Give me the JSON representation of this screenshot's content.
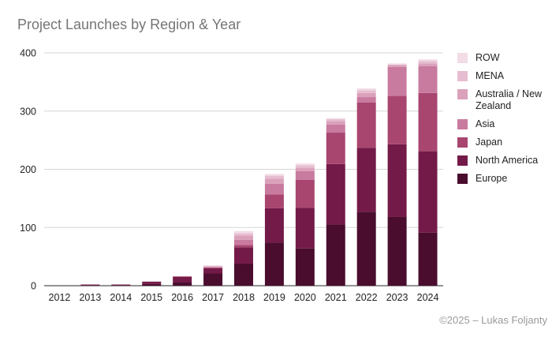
{
  "chart_data": {
    "type": "bar",
    "stacked": true,
    "title": "Project Launches by Region & Year",
    "xlabel": "",
    "ylabel": "",
    "ylim": [
      0,
      400
    ],
    "yticks": [
      0,
      100,
      200,
      300,
      400
    ],
    "grid": true,
    "legend_position": "right",
    "categories": [
      "2012",
      "2013",
      "2014",
      "2015",
      "2016",
      "2017",
      "2018",
      "2019",
      "2020",
      "2021",
      "2022",
      "2023",
      "2024"
    ],
    "series": [
      {
        "name": "Europe",
        "color": "#4a0d2e",
        "values": [
          0,
          1,
          1,
          3,
          6,
          21,
          38,
          74,
          64,
          105,
          127,
          118,
          91
        ]
      },
      {
        "name": "North America",
        "color": "#741a48",
        "values": [
          0,
          1,
          1,
          4,
          9,
          9,
          28,
          59,
          70,
          104,
          110,
          125,
          140
        ]
      },
      {
        "name": "Japan",
        "color": "#a8466f",
        "values": [
          0,
          0,
          0,
          0,
          1,
          1,
          4,
          24,
          48,
          54,
          78,
          83,
          100
        ]
      },
      {
        "name": "Asia",
        "color": "#c97a9f",
        "values": [
          0,
          0,
          0,
          0,
          0,
          1,
          9,
          18,
          15,
          14,
          9,
          50,
          46
        ]
      },
      {
        "name": "Australia / New Zealand",
        "color": "#dba1bb",
        "values": [
          0,
          0,
          0,
          0,
          0,
          1,
          7,
          9,
          5,
          6,
          7,
          3,
          5
        ]
      },
      {
        "name": "MENA",
        "color": "#e6bdd0",
        "values": [
          0,
          0,
          0,
          0,
          0,
          1,
          4,
          5,
          5,
          3,
          5,
          1,
          4
        ]
      },
      {
        "name": "ROW",
        "color": "#f2dce6",
        "values": [
          0,
          0,
          0,
          0,
          0,
          1,
          4,
          3,
          3,
          2,
          3,
          2,
          3
        ]
      }
    ],
    "legend_order": [
      "ROW",
      "MENA",
      "Australia / New Zealand",
      "Asia",
      "Japan",
      "North America",
      "Europe"
    ]
  },
  "footer": "©2025 – Lukas Foljanty"
}
